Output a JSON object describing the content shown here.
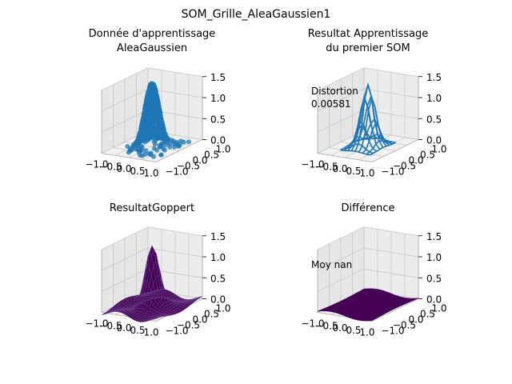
{
  "figure_title": "SOM_Grille_AleaGaussien1",
  "colors": {
    "scatter": "#1f77b4",
    "wire": "#1f77b4",
    "surface": "#440154",
    "pane": "#f2f2f2",
    "grid": "#c8c8c8"
  },
  "chart_data": [
    {
      "type": "scatter",
      "projection": "3d",
      "title": "Donnée d'apprentissage\nAleaGaussien",
      "x_ticks": [
        "−1.0",
        "−0.5",
        "0.0",
        "0.5",
        "1.0"
      ],
      "y_ticks": [
        "−1.0",
        "−0.5",
        "0.0",
        "0.5",
        "1.0"
      ],
      "z_ticks": [
        "0.0",
        "0.5",
        "1.0",
        "1.5"
      ],
      "xlim": [
        -1,
        1
      ],
      "ylim": [
        -1,
        1
      ],
      "zlim": [
        0,
        1.5
      ],
      "annotation": "",
      "series": [
        {
          "description": "random gaussian samples z = exp(-(x²+y²)/0.15)",
          "points_shown": "dense cloud, peak near z≈1.5"
        }
      ]
    },
    {
      "type": "wireframe",
      "projection": "3d",
      "title": "Resultat Apprentissage\ndu premier SOM",
      "x_ticks": [
        "−1.0",
        "−0.5",
        "0.0",
        "0.5",
        "1.0"
      ],
      "y_ticks": [
        "−1.0",
        "−0.5",
        "0.0",
        "0.5",
        "1.0"
      ],
      "z_ticks": [
        "0.0",
        "0.5",
        "1.0",
        "1.5"
      ],
      "xlim": [
        -1,
        1
      ],
      "ylim": [
        -1,
        1
      ],
      "zlim": [
        0,
        1.5
      ],
      "annotation": "Distortion\n0.00581"
    },
    {
      "type": "surface",
      "projection": "3d",
      "title": "ResultatGoppert",
      "x_ticks": [
        "−1.0",
        "−0.5",
        "0.0",
        "0.5",
        "1.0"
      ],
      "y_ticks": [
        "−1.0",
        "−0.5",
        "0.0",
        "0.5",
        "1.0"
      ],
      "z_ticks": [
        "0.0",
        "0.5",
        "1.0",
        "1.5"
      ],
      "xlim": [
        -1,
        1
      ],
      "ylim": [
        -1,
        1
      ],
      "zlim": [
        0,
        1.5
      ],
      "annotation": ""
    },
    {
      "type": "surface",
      "projection": "3d",
      "title": "Différence",
      "x_ticks": [
        "−1.0",
        "−0.5",
        "0.0",
        "0.5",
        "1.0"
      ],
      "y_ticks": [
        "−1.0",
        "−0.5",
        "0.0",
        "0.5",
        "1.0"
      ],
      "z_ticks": [
        "0.0",
        "0.5",
        "1.0",
        "1.5"
      ],
      "xlim": [
        -1,
        1
      ],
      "ylim": [
        -1,
        1
      ],
      "zlim": [
        0,
        1.5
      ],
      "annotation": "Moy nan"
    }
  ]
}
